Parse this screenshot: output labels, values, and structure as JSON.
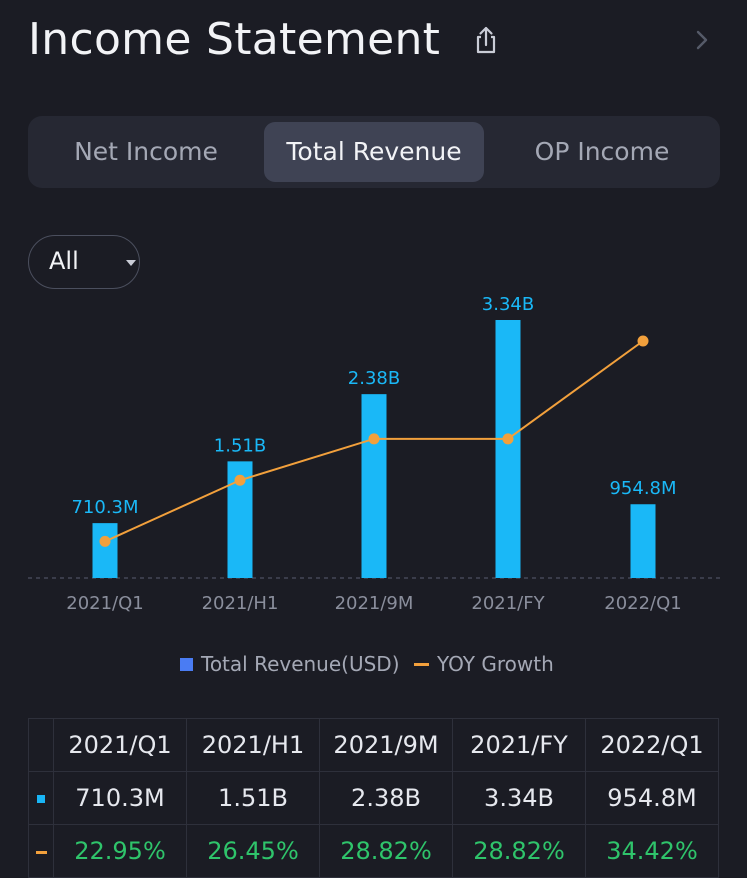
{
  "page": {
    "title": "Income Statement",
    "icons": {
      "share": "share-icon",
      "next": "chevron-right-icon"
    }
  },
  "tabs": [
    {
      "label": "Net Income",
      "active": false
    },
    {
      "label": "Total Revenue",
      "active": true
    },
    {
      "label": "OP Income",
      "active": false
    }
  ],
  "filter": {
    "label": "All",
    "icon": "caret-down-icon"
  },
  "colors": {
    "bar": "#1ab8f7",
    "line": "#f2a03c",
    "positive": "#2fc46b",
    "active_tab": "#3f4354",
    "legend_square": "#4a7cf3"
  },
  "chart_data": {
    "type": "bar",
    "title": "Total Revenue",
    "categories": [
      "2021/Q1",
      "2021/H1",
      "2021/9M",
      "2021/FY",
      "2022/Q1"
    ],
    "series": [
      {
        "name": "Total Revenue(USD)",
        "type": "bar",
        "values": [
          710.3,
          1510,
          2380,
          3340,
          954.8
        ],
        "unit": "M USD",
        "labels": [
          "710.3M",
          "1.51B",
          "2.38B",
          "3.34B",
          "954.8M"
        ]
      },
      {
        "name": "YOY Growth",
        "type": "line",
        "values": [
          22.95,
          26.45,
          28.82,
          28.82,
          34.42
        ],
        "unit": "%"
      }
    ],
    "legend": [
      "Total Revenue(USD)",
      "YOY Growth"
    ],
    "legend_position": "bottom",
    "ylim_bar": [
      0,
      3340
    ],
    "ylim_line": [
      22.0,
      34.42
    ],
    "baseline": "dashed"
  },
  "table": {
    "headers": [
      "2021/Q1",
      "2021/H1",
      "2021/9M",
      "2021/FY",
      "2022/Q1"
    ],
    "revenue": [
      "710.3M",
      "1.51B",
      "2.38B",
      "3.34B",
      "954.8M"
    ],
    "growth": [
      "22.95%",
      "26.45%",
      "28.82%",
      "28.82%",
      "34.42%"
    ]
  }
}
